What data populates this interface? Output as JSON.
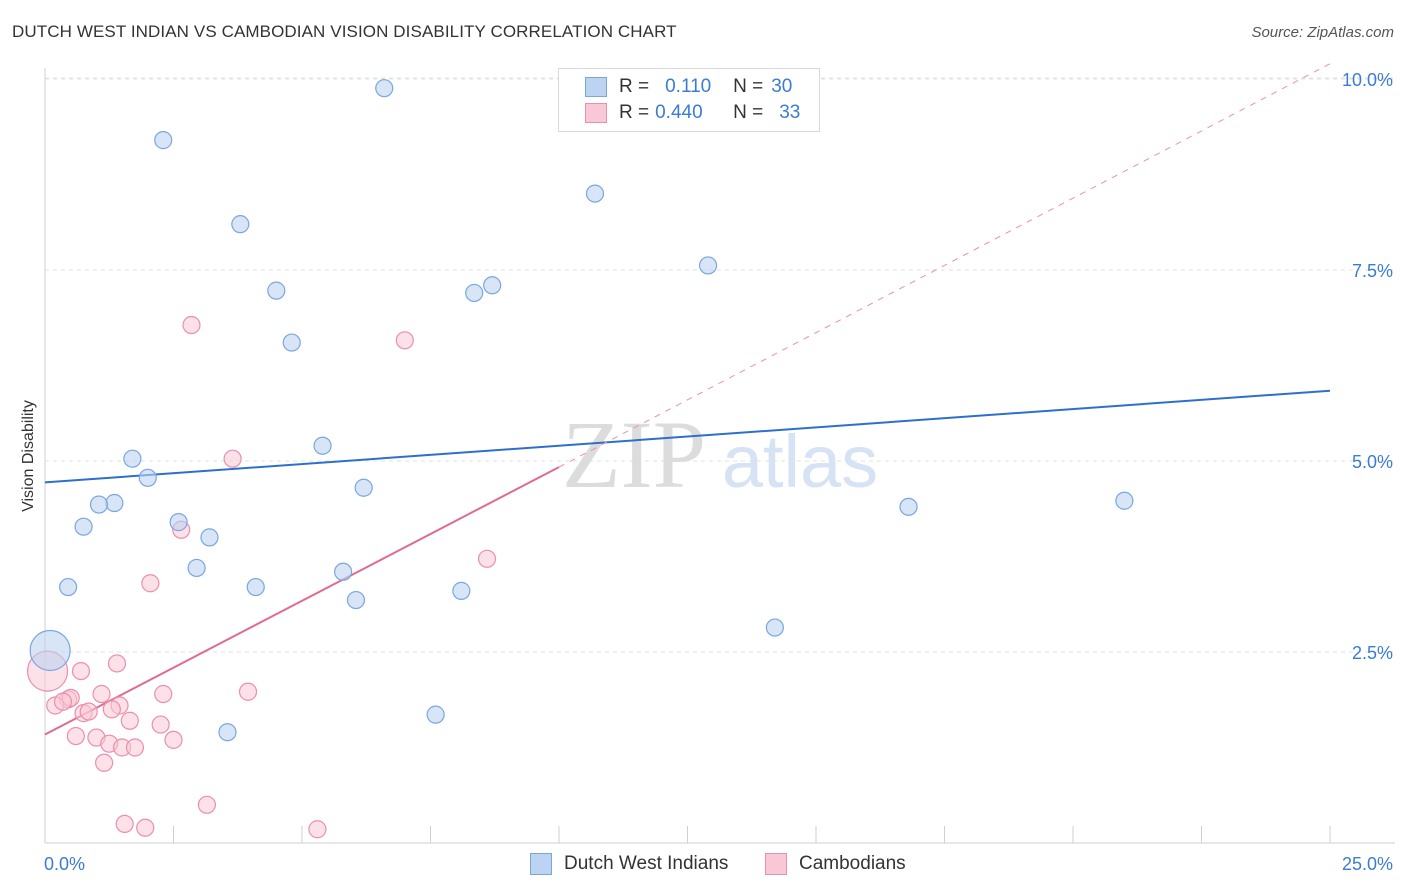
{
  "title": "DUTCH WEST INDIAN VS CAMBODIAN VISION DISABILITY CORRELATION CHART",
  "source": "Source: ZipAtlas.com",
  "watermark": {
    "zip": "ZIP",
    "atlas": "atlas"
  },
  "legend": {
    "rows": [
      {
        "r_label": "R =",
        "r_value": "0.110",
        "n_label": "N =",
        "n_value": "30"
      },
      {
        "r_label": "R =",
        "r_value": "0.440",
        "n_label": "N =",
        "n_value": "33"
      }
    ]
  },
  "bottom_legend": {
    "series_a": "Dutch West Indians",
    "series_b": "Cambodians"
  },
  "colors": {
    "blue_fill": "#bdd3f2",
    "blue_stroke": "#7aa6e0",
    "blue_line": "#2f6fcc",
    "pink_fill": "#f9c8d6",
    "pink_stroke": "#eb8fab",
    "pink_line": "#e06a93",
    "tick_text": "#3a7cd4",
    "grid": "#e2e2e2"
  },
  "chart_data": {
    "type": "scatter",
    "title": "DUTCH WEST INDIAN VS CAMBODIAN VISION DISABILITY CORRELATION CHART",
    "xlabel": "",
    "ylabel": "Vision Disability",
    "xlim": [
      0,
      25
    ],
    "ylim": [
      0,
      10.5
    ],
    "x_tick_labels": [
      "0.0%",
      "25.0%"
    ],
    "y_ticks": [
      {
        "value": 2.5,
        "label": "2.5%"
      },
      {
        "value": 5.0,
        "label": "5.0%"
      },
      {
        "value": 7.5,
        "label": "7.5%"
      },
      {
        "value": 10.0,
        "label": "10.0%"
      }
    ],
    "series": [
      {
        "name": "Dutch West Indians",
        "r": 0.11,
        "n": 30,
        "points": [
          {
            "x": 6.6,
            "y": 9.88
          },
          {
            "x": 2.3,
            "y": 9.2
          },
          {
            "x": 10.7,
            "y": 8.5
          },
          {
            "x": 3.8,
            "y": 8.1
          },
          {
            "x": 12.9,
            "y": 7.56
          },
          {
            "x": 4.5,
            "y": 7.23
          },
          {
            "x": 8.7,
            "y": 7.3
          },
          {
            "x": 8.35,
            "y": 7.2
          },
          {
            "x": 4.8,
            "y": 6.55
          },
          {
            "x": 5.4,
            "y": 5.2
          },
          {
            "x": 1.7,
            "y": 5.03
          },
          {
            "x": 2.0,
            "y": 4.78
          },
          {
            "x": 6.2,
            "y": 4.65
          },
          {
            "x": 1.35,
            "y": 4.45
          },
          {
            "x": 1.05,
            "y": 4.43
          },
          {
            "x": 0.75,
            "y": 4.14
          },
          {
            "x": 2.6,
            "y": 4.2
          },
          {
            "x": 3.2,
            "y": 4.0
          },
          {
            "x": 2.95,
            "y": 3.6
          },
          {
            "x": 5.8,
            "y": 3.55
          },
          {
            "x": 0.45,
            "y": 3.35
          },
          {
            "x": 4.1,
            "y": 3.35
          },
          {
            "x": 8.1,
            "y": 3.3
          },
          {
            "x": 6.05,
            "y": 3.18
          },
          {
            "x": 16.8,
            "y": 4.4
          },
          {
            "x": 21.0,
            "y": 4.48
          },
          {
            "x": 14.2,
            "y": 2.82
          },
          {
            "x": 0.1,
            "y": 2.52,
            "big": true
          },
          {
            "x": 7.6,
            "y": 1.68
          },
          {
            "x": 3.55,
            "y": 1.45
          }
        ],
        "trend": {
          "x1": 0.0,
          "y1": 4.72,
          "x2": 25.0,
          "y2": 5.92
        }
      },
      {
        "name": "Cambodians",
        "r": 0.44,
        "n": 33,
        "points": [
          {
            "x": 2.85,
            "y": 6.78
          },
          {
            "x": 7.0,
            "y": 6.58
          },
          {
            "x": 3.65,
            "y": 5.03
          },
          {
            "x": 2.65,
            "y": 4.1
          },
          {
            "x": 8.6,
            "y": 3.72
          },
          {
            "x": 2.05,
            "y": 3.4
          },
          {
            "x": 0.05,
            "y": 2.25,
            "big": true
          },
          {
            "x": 0.7,
            "y": 2.25
          },
          {
            "x": 1.4,
            "y": 2.35
          },
          {
            "x": 2.3,
            "y": 1.95
          },
          {
            "x": 3.95,
            "y": 1.98
          },
          {
            "x": 1.1,
            "y": 1.95
          },
          {
            "x": 0.45,
            "y": 1.88
          },
          {
            "x": 0.5,
            "y": 1.9
          },
          {
            "x": 0.2,
            "y": 1.8
          },
          {
            "x": 0.35,
            "y": 1.85
          },
          {
            "x": 1.45,
            "y": 1.8
          },
          {
            "x": 1.3,
            "y": 1.75
          },
          {
            "x": 0.75,
            "y": 1.7
          },
          {
            "x": 1.65,
            "y": 1.6
          },
          {
            "x": 2.25,
            "y": 1.55
          },
          {
            "x": 0.6,
            "y": 1.4
          },
          {
            "x": 1.0,
            "y": 1.38
          },
          {
            "x": 2.5,
            "y": 1.35
          },
          {
            "x": 1.25,
            "y": 1.3
          },
          {
            "x": 1.5,
            "y": 1.25
          },
          {
            "x": 1.75,
            "y": 1.25
          },
          {
            "x": 1.15,
            "y": 1.05
          },
          {
            "x": 3.15,
            "y": 0.5
          },
          {
            "x": 1.55,
            "y": 0.25
          },
          {
            "x": 1.95,
            "y": 0.2
          },
          {
            "x": 5.3,
            "y": 0.18
          },
          {
            "x": 0.85,
            "y": 1.72
          }
        ],
        "trend": {
          "x1": 0.0,
          "y1": 1.42,
          "x2": 10.0,
          "y2": 4.92
        },
        "trend_extension": {
          "x1": 10.0,
          "y1": 4.92,
          "x2": 25.0,
          "y2": 10.2
        }
      }
    ]
  }
}
